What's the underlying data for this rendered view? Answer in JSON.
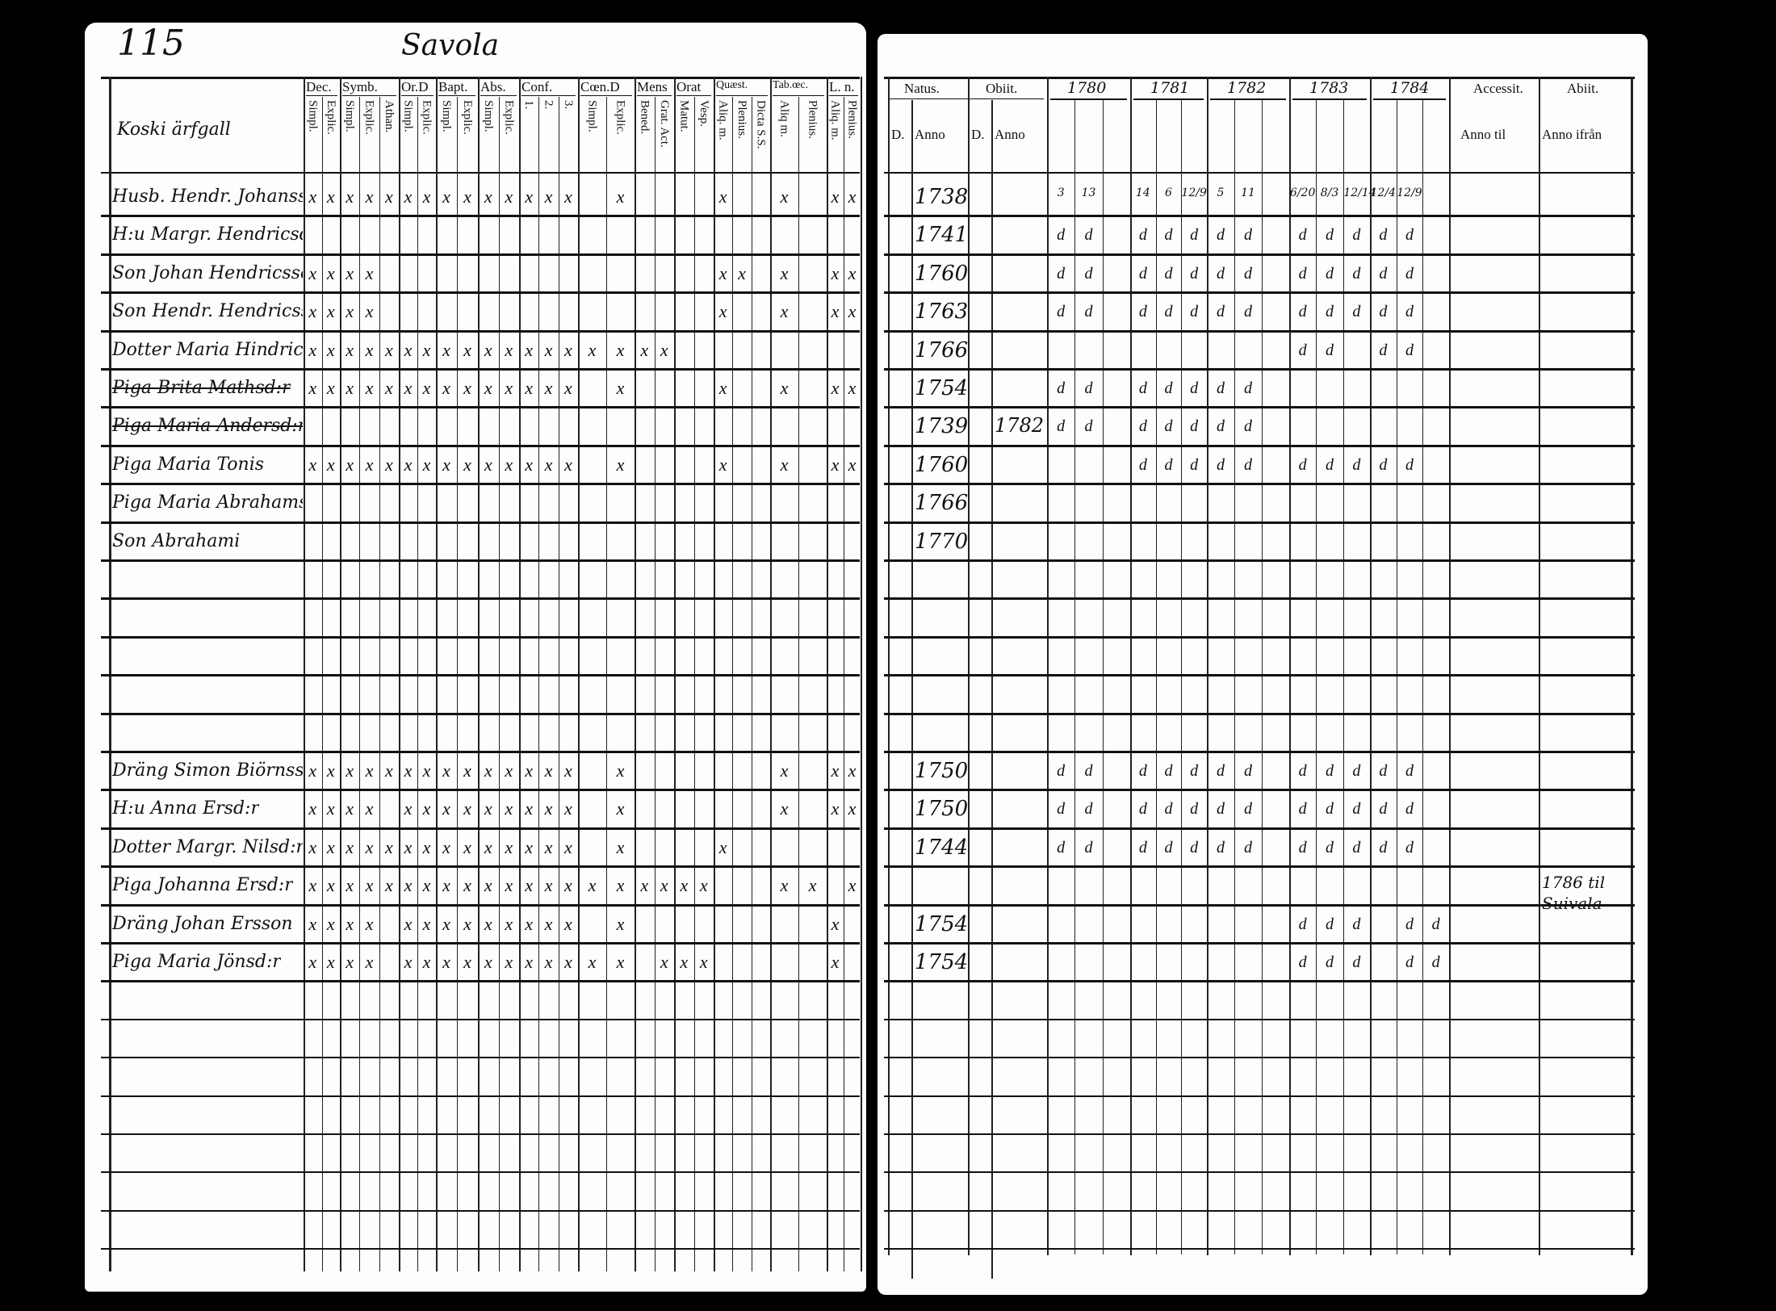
{
  "left_page": {
    "page_number": "115",
    "title": "Savola",
    "name_column_header": "Koski ärfgall",
    "groups": [
      {
        "label": "Dec.",
        "subs": [
          "Simpl.",
          "Explic."
        ]
      },
      {
        "label": "Symb.",
        "subs": [
          "Simpl.",
          "Explic.",
          "Athan."
        ]
      },
      {
        "label": "Or.D",
        "subs": [
          "Simpl.",
          "Explic."
        ]
      },
      {
        "label": "Bapt.",
        "subs": [
          "Simpl.",
          "Explic."
        ]
      },
      {
        "label": "Abs.",
        "subs": [
          "Simpl.",
          "Explic."
        ]
      },
      {
        "label": "Conf.",
        "subs": [
          "1.",
          "2.",
          "3."
        ]
      },
      {
        "label": "Cœn.D",
        "subs": [
          "Simpl.",
          "Explic."
        ]
      },
      {
        "label": "Mens",
        "subs": [
          "Bened.",
          "Grat. Act."
        ]
      },
      {
        "label": "Orat",
        "subs": [
          "Matut.",
          "Vesp."
        ]
      },
      {
        "label": "Quæst.",
        "subs": [
          "Aliq. m.",
          "Plenius.",
          "Dicta S.S."
        ]
      },
      {
        "label": "Tab.œc.",
        "subs": [
          "Aliq m.",
          "Plenius."
        ]
      },
      {
        "label": "L. n.",
        "subs": [
          "Aliq. m.",
          "Plenius."
        ]
      }
    ]
  },
  "right_page": {
    "natus": {
      "label": "Natus.",
      "day": "D.",
      "year": "Anno"
    },
    "obiit": {
      "label": "Obiit.",
      "day": "D.",
      "year": "Anno"
    },
    "years": [
      "1780",
      "1781",
      "1782",
      "1783",
      "1784"
    ],
    "accessit": {
      "label": "Accessit.",
      "sub": "Anno til"
    },
    "abiit": {
      "label": "Abiit.",
      "sub": "Anno ifrån"
    }
  },
  "mark_glyph": "x",
  "presence_glyph": "d",
  "rows": [
    {
      "row": 1,
      "name": "Husb. Hendr. Johansson",
      "struck": false,
      "marks": "xxxxxxxxxxxxxx.x....x..x.xx",
      "natus": "1738",
      "obiit": "",
      "years": [
        "3",
        "13",
        "",
        "14",
        "6",
        "12/9",
        "5",
        "11",
        "",
        "6/20",
        "8/3",
        "12/14",
        "12/4",
        "12/9",
        ""
      ],
      "abiit": ""
    },
    {
      "row": 2,
      "name": "H:u Margr. Hendricsd:r",
      "struck": false,
      "marks": "",
      "natus": "1741",
      "obiit": "",
      "presence": "dd.ddddd.ddddd.",
      "abiit": ""
    },
    {
      "row": 3,
      "name": "Son Johan Hendricsson",
      "struck": false,
      "marks": "xxxx................xx.x.xx",
      "natus": "1760",
      "obiit": "",
      "presence": "dd.ddddd.ddddd.",
      "abiit": ""
    },
    {
      "row": 4,
      "name": "Son Hendr. Hendricsson",
      "struck": false,
      "marks": "xxxx................x..x.xx",
      "natus": "1763",
      "obiit": "",
      "presence": "dd.ddddd.ddddd.",
      "abiit": ""
    },
    {
      "row": 5,
      "name": "Dotter Maria Hindricsd:r",
      "struck": false,
      "marks": "xxxxxxxxxxxxxxxxxx.........",
      "natus": "1766",
      "obiit": "",
      "presence": ".........dd.dd.",
      "abiit": ""
    },
    {
      "row": 6,
      "name": "Piga Brita Mathsd:r",
      "struck": true,
      "marks": "xxxxxxxxxxxxxx.x....x..x.xx",
      "natus": "1754",
      "obiit": "",
      "presence": "dd.ddddd.......",
      "abiit": ""
    },
    {
      "row": 7,
      "name": "Piga Maria Andersd:r",
      "struck": true,
      "marks": "",
      "natus": "1739",
      "obiit": "1782",
      "presence": "dd.ddddd.......",
      "abiit": ""
    },
    {
      "row": 8,
      "name": "Piga Maria Tonis",
      "struck": false,
      "marks": "xxxxxxxxxxxxxx.x....x..x.xx",
      "natus": "1760",
      "obiit": "",
      "presence": "...ddddd.ddddd.",
      "abiit": ""
    },
    {
      "row": 9,
      "name": "Piga Maria Abrahamsd:r",
      "struck": false,
      "marks": "",
      "natus": "1766",
      "obiit": "",
      "presence": "",
      "abiit": ""
    },
    {
      "row": 10,
      "name": "Son Abrahami",
      "struck": false,
      "marks": "",
      "natus": "1770",
      "obiit": "",
      "presence": "",
      "abiit": ""
    },
    {
      "row": 16,
      "name": "Dräng Simon Biörnsson",
      "struck": false,
      "marks": "xxxxxxxxxxxxxx.x.......x.xx",
      "natus": "1750",
      "obiit": "",
      "presence": "dd.ddddd.ddddd.",
      "abiit": ""
    },
    {
      "row": 17,
      "name": "H:u Anna Ersd:r",
      "struck": false,
      "marks": "xxxx.xxxxxxxxx.x.......x.xx",
      "natus": "1750",
      "obiit": "",
      "presence": "dd.ddddd.ddddd.",
      "abiit": ""
    },
    {
      "row": 18,
      "name": "Dotter Margr. Nilsd:r",
      "struck": false,
      "marks": "xxxxxxxxxxxxxx.x....x......",
      "natus": "1744",
      "obiit": "",
      "presence": "dd.ddddd.ddddd.",
      "abiit": ""
    },
    {
      "row": 19,
      "name": "Piga Johanna Ersd:r",
      "struck": false,
      "marks": "xxxxxxxxxxxxxxxxxxxx...xx.x",
      "natus": "",
      "obiit": "",
      "presence": "",
      "abiit": "1786 til Suivala"
    },
    {
      "row": 20,
      "name": "Dräng Johan Ersson",
      "struck": false,
      "marks": "xxxx.xxxxxxxxx.x.........x.",
      "natus": "1754",
      "obiit": "",
      "presence": ".........ddd.dd",
      "abiit": ""
    },
    {
      "row": 21,
      "name": "Piga Maria Jönsd:r",
      "struck": false,
      "marks": "xxxx.xxxxxxxxxxx.xxx.....x.",
      "natus": "1754",
      "obiit": "",
      "presence": ".........ddd.dd",
      "abiit": ""
    }
  ]
}
